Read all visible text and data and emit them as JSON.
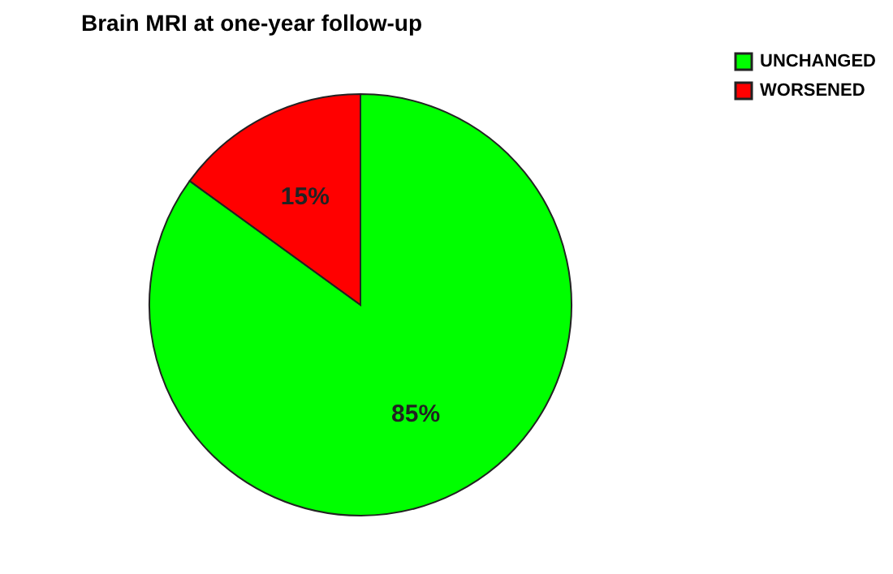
{
  "chart_data": {
    "type": "pie",
    "title": "Brain MRI at one-year follow-up",
    "categories": [
      "UNCHANGED",
      "WORSENED"
    ],
    "values": [
      85,
      15
    ],
    "colors": [
      "#00ff00",
      "#ff0000"
    ],
    "value_labels": [
      "85%",
      "15%"
    ],
    "legend": "right"
  }
}
